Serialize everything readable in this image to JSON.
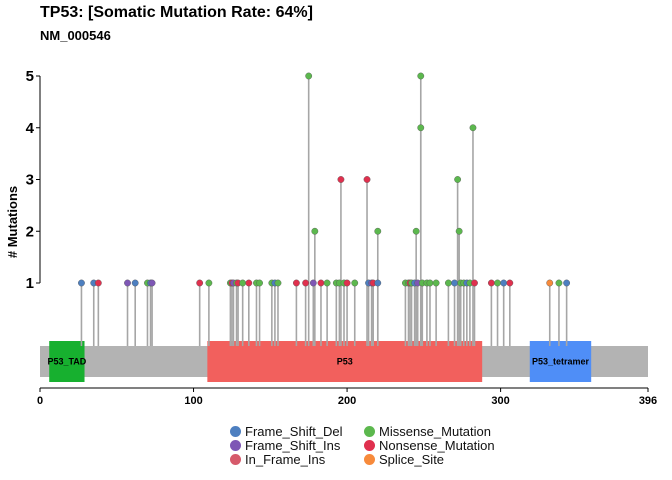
{
  "chart_data": {
    "type": "lollipop",
    "title": "TP53: [Somatic Mutation Rate: 64%]",
    "subtitle": "NM_000546",
    "ylabel": "# Mutations",
    "xlim": [
      0,
      396
    ],
    "ylim": [
      0,
      5
    ],
    "xticks": [
      0,
      100,
      200,
      300,
      396
    ],
    "yticks": [
      1,
      2,
      3,
      4,
      5
    ],
    "protein_length": 396,
    "domains": [
      {
        "name": "P53_TAD",
        "start": 6,
        "end": 29,
        "color": "#17b02f"
      },
      {
        "name": "P53",
        "start": 109,
        "end": 288,
        "color": "#f2605d"
      },
      {
        "name": "P53_tetramer",
        "start": 319,
        "end": 359,
        "color": "#4f8ef7"
      }
    ],
    "mutation_classes": [
      {
        "name": "Frame_Shift_Del",
        "color": "#4d7fc0"
      },
      {
        "name": "Frame_Shift_Ins",
        "color": "#7e57b5"
      },
      {
        "name": "In_Frame_Ins",
        "color": "#d65a6b"
      },
      {
        "name": "Missense_Mutation",
        "color": "#5cb84e"
      },
      {
        "name": "Nonsense_Mutation",
        "color": "#e0304e"
      },
      {
        "name": "Splice_Site",
        "color": "#f78a3b"
      }
    ],
    "mutations": [
      {
        "pos": 27,
        "count": 1,
        "class": "Frame_Shift_Del"
      },
      {
        "pos": 35,
        "count": 1,
        "class": "Frame_Shift_Del"
      },
      {
        "pos": 38,
        "count": 1,
        "class": "Nonsense_Mutation"
      },
      {
        "pos": 57,
        "count": 1,
        "class": "Frame_Shift_Ins"
      },
      {
        "pos": 62,
        "count": 1,
        "class": "Frame_Shift_Del"
      },
      {
        "pos": 70,
        "count": 1,
        "class": "Missense_Mutation"
      },
      {
        "pos": 72,
        "count": 1,
        "class": "Frame_Shift_Del"
      },
      {
        "pos": 73,
        "count": 1,
        "class": "Frame_Shift_Ins"
      },
      {
        "pos": 104,
        "count": 1,
        "class": "Nonsense_Mutation"
      },
      {
        "pos": 110,
        "count": 1,
        "class": "Missense_Mutation"
      },
      {
        "pos": 124,
        "count": 1,
        "class": "Missense_Mutation"
      },
      {
        "pos": 125,
        "count": 1,
        "class": "Nonsense_Mutation"
      },
      {
        "pos": 126,
        "count": 1,
        "class": "Frame_Shift_Ins"
      },
      {
        "pos": 128,
        "count": 1,
        "class": "Missense_Mutation"
      },
      {
        "pos": 129,
        "count": 1,
        "class": "Nonsense_Mutation"
      },
      {
        "pos": 132,
        "count": 1,
        "class": "Missense_Mutation"
      },
      {
        "pos": 136,
        "count": 1,
        "class": "Nonsense_Mutation"
      },
      {
        "pos": 141,
        "count": 1,
        "class": "Missense_Mutation"
      },
      {
        "pos": 143,
        "count": 1,
        "class": "Missense_Mutation"
      },
      {
        "pos": 151,
        "count": 1,
        "class": "Missense_Mutation"
      },
      {
        "pos": 153,
        "count": 1,
        "class": "Frame_Shift_Del"
      },
      {
        "pos": 155,
        "count": 1,
        "class": "Missense_Mutation"
      },
      {
        "pos": 167,
        "count": 1,
        "class": "Nonsense_Mutation"
      },
      {
        "pos": 173,
        "count": 1,
        "class": "Nonsense_Mutation"
      },
      {
        "pos": 175,
        "count": 5,
        "class": "Missense_Mutation"
      },
      {
        "pos": 178,
        "count": 1,
        "class": "Frame_Shift_Ins"
      },
      {
        "pos": 179,
        "count": 2,
        "class": "Missense_Mutation"
      },
      {
        "pos": 183,
        "count": 1,
        "class": "Nonsense_Mutation"
      },
      {
        "pos": 187,
        "count": 1,
        "class": "Missense_Mutation"
      },
      {
        "pos": 193,
        "count": 1,
        "class": "Missense_Mutation"
      },
      {
        "pos": 195,
        "count": 1,
        "class": "Missense_Mutation"
      },
      {
        "pos": 196,
        "count": 3,
        "class": "Nonsense_Mutation"
      },
      {
        "pos": 198,
        "count": 1,
        "class": "Missense_Mutation"
      },
      {
        "pos": 200,
        "count": 1,
        "class": "Nonsense_Mutation"
      },
      {
        "pos": 205,
        "count": 1,
        "class": "Missense_Mutation"
      },
      {
        "pos": 213,
        "count": 3,
        "class": "Nonsense_Mutation"
      },
      {
        "pos": 214,
        "count": 1,
        "class": "Frame_Shift_Del"
      },
      {
        "pos": 216,
        "count": 1,
        "class": "Frame_Shift_Ins"
      },
      {
        "pos": 217,
        "count": 1,
        "class": "Nonsense_Mutation"
      },
      {
        "pos": 220,
        "count": 2,
        "class": "Missense_Mutation"
      },
      {
        "pos": 220,
        "count": 1,
        "class": "Frame_Shift_Del"
      },
      {
        "pos": 238,
        "count": 1,
        "class": "Missense_Mutation"
      },
      {
        "pos": 240,
        "count": 1,
        "class": "Missense_Mutation"
      },
      {
        "pos": 241,
        "count": 1,
        "class": "Nonsense_Mutation"
      },
      {
        "pos": 242,
        "count": 1,
        "class": "Missense_Mutation"
      },
      {
        "pos": 244,
        "count": 1,
        "class": "Frame_Shift_Del"
      },
      {
        "pos": 245,
        "count": 2,
        "class": "Missense_Mutation"
      },
      {
        "pos": 246,
        "count": 1,
        "class": "Frame_Shift_Ins"
      },
      {
        "pos": 248,
        "count": 5,
        "class": "Missense_Mutation"
      },
      {
        "pos": 248,
        "count": 4,
        "class": "Missense_Mutation"
      },
      {
        "pos": 249,
        "count": 1,
        "class": "Missense_Mutation"
      },
      {
        "pos": 252,
        "count": 1,
        "class": "Missense_Mutation"
      },
      {
        "pos": 254,
        "count": 1,
        "class": "Missense_Mutation"
      },
      {
        "pos": 258,
        "count": 1,
        "class": "Missense_Mutation"
      },
      {
        "pos": 266,
        "count": 1,
        "class": "Missense_Mutation"
      },
      {
        "pos": 270,
        "count": 1,
        "class": "Frame_Shift_Del"
      },
      {
        "pos": 272,
        "count": 3,
        "class": "Missense_Mutation"
      },
      {
        "pos": 273,
        "count": 2,
        "class": "Missense_Mutation"
      },
      {
        "pos": 274,
        "count": 1,
        "class": "Missense_Mutation"
      },
      {
        "pos": 276,
        "count": 1,
        "class": "Missense_Mutation"
      },
      {
        "pos": 278,
        "count": 1,
        "class": "Frame_Shift_Del"
      },
      {
        "pos": 280,
        "count": 1,
        "class": "Missense_Mutation"
      },
      {
        "pos": 282,
        "count": 4,
        "class": "Missense_Mutation"
      },
      {
        "pos": 283,
        "count": 1,
        "class": "Nonsense_Mutation"
      },
      {
        "pos": 294,
        "count": 1,
        "class": "Nonsense_Mutation"
      },
      {
        "pos": 298,
        "count": 1,
        "class": "Missense_Mutation"
      },
      {
        "pos": 302,
        "count": 1,
        "class": "Frame_Shift_Del"
      },
      {
        "pos": 306,
        "count": 1,
        "class": "Nonsense_Mutation"
      },
      {
        "pos": 332,
        "count": 1,
        "class": "Splice_Site"
      },
      {
        "pos": 338,
        "count": 1,
        "class": "Missense_Mutation"
      },
      {
        "pos": 343,
        "count": 1,
        "class": "Frame_Shift_Del"
      }
    ],
    "legend_position": "bottom",
    "grid": false
  }
}
